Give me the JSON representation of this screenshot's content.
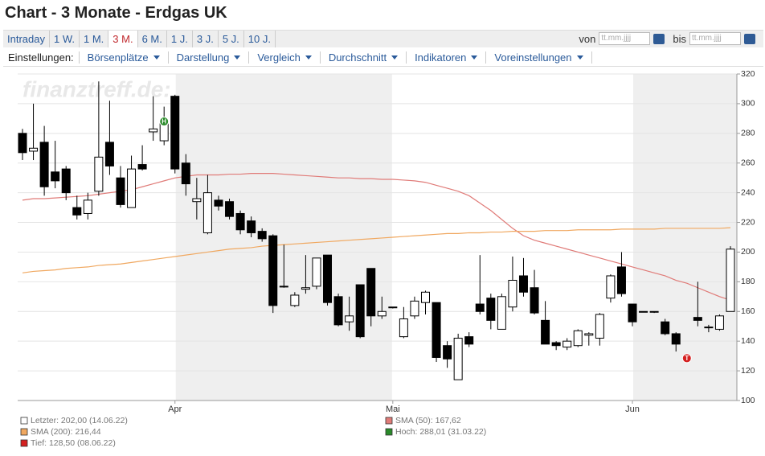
{
  "header": {
    "title": "Chart - 3 Monate - Erdgas UK"
  },
  "tabs": {
    "items": [
      "Intraday",
      "1 W.",
      "1 M.",
      "3 M.",
      "6 M.",
      "1 J.",
      "3 J.",
      "5 J.",
      "10 J."
    ],
    "active": 3
  },
  "date_range": {
    "from_label": "von",
    "to_label": "bis",
    "placeholder": "tt.mm.jjjj"
  },
  "settings": {
    "label": "Einstellungen:",
    "menus": [
      "Börsenplätze",
      "Darstellung",
      "Vergleich",
      "Durchschnitt",
      "Indikatoren",
      "Voreinstellungen"
    ]
  },
  "chart_data": {
    "type": "candlestick",
    "watermark": "finanztreff.de:",
    "categories": [
      null,
      null,
      null,
      null,
      null,
      null,
      null,
      null,
      null,
      null,
      null,
      null,
      null,
      null,
      "Apr",
      null,
      null,
      null,
      null,
      null,
      null,
      null,
      null,
      null,
      null,
      null,
      null,
      null,
      null,
      null,
      null,
      null,
      null,
      null,
      "Mai",
      null,
      null,
      null,
      null,
      null,
      null,
      null,
      null,
      null,
      null,
      null,
      null,
      null,
      null,
      null,
      null,
      null,
      null,
      null,
      null,
      null,
      "Jun",
      null,
      null,
      null,
      null,
      null,
      null,
      null,
      null,
      null
    ],
    "open": [
      280,
      268,
      274,
      254,
      256,
      230,
      226,
      241,
      274,
      250,
      230,
      259,
      281,
      275,
      305,
      260,
      234,
      213,
      235,
      234,
      226,
      221,
      214,
      211,
      177,
      164,
      175,
      177,
      198,
      170,
      153,
      178,
      189,
      157,
      163,
      143,
      157,
      166,
      166,
      137,
      114,
      143,
      165,
      169,
      148,
      163,
      184,
      176,
      154,
      139,
      136,
      137,
      144,
      142,
      169,
      190,
      165,
      160,
      160,
      153,
      145,
      null,
      156,
      149,
      148,
      160
    ],
    "high": [
      283,
      300,
      285,
      275,
      258,
      238,
      240,
      315,
      302,
      258,
      265,
      272,
      305,
      298,
      306,
      266,
      250,
      252,
      238,
      236,
      228,
      224,
      216,
      212,
      205,
      173,
      198,
      196,
      198,
      172,
      170,
      178,
      189,
      170,
      163,
      163,
      170,
      174,
      166,
      140,
      145,
      146,
      198,
      172,
      172,
      197,
      196,
      188,
      167,
      140,
      142,
      148,
      146,
      159,
      185,
      200,
      165,
      160,
      160,
      155,
      146,
      null,
      180,
      151,
      158,
      204
    ],
    "low": [
      262,
      262,
      238,
      243,
      235,
      222,
      222,
      238,
      252,
      230,
      230,
      255,
      275,
      272,
      253,
      238,
      222,
      212,
      228,
      222,
      212,
      210,
      207,
      159,
      176,
      163,
      172,
      175,
      164,
      150,
      147,
      142,
      150,
      155,
      162,
      142,
      155,
      158,
      126,
      122,
      114,
      136,
      158,
      148,
      148,
      160,
      170,
      158,
      138,
      134,
      134,
      136,
      137,
      137,
      166,
      170,
      150,
      160,
      159,
      144,
      133,
      null,
      150,
      146,
      147,
      160
    ],
    "close": [
      267,
      270,
      244,
      248,
      240,
      225,
      235,
      264,
      258,
      232,
      256,
      256,
      283,
      287,
      256,
      246,
      236,
      240,
      231,
      224,
      215,
      213,
      209,
      164,
      177,
      171,
      176,
      196,
      166,
      151,
      157,
      143,
      157,
      160,
      163,
      155,
      167,
      173,
      129,
      128,
      142,
      138,
      160,
      154,
      170,
      181,
      173,
      159,
      138,
      137,
      140,
      147,
      145,
      158,
      184,
      172,
      153,
      160,
      159.5,
      145,
      138,
      null,
      154,
      149.5,
      157,
      202
    ],
    "up_color": "#ffffff",
    "down_color": "#000000",
    "series": [
      {
        "name": "SMA (50)",
        "color": "#e07b78",
        "values": [
          235,
          236,
          236,
          236.5,
          237,
          237.5,
          238,
          239,
          240,
          241,
          242,
          244,
          246,
          248,
          250,
          251,
          252,
          252,
          252,
          252.5,
          252.5,
          253,
          253,
          253,
          252.5,
          252,
          251.5,
          251,
          250.5,
          250,
          250,
          249.5,
          249.5,
          249,
          249,
          248.5,
          248,
          247,
          245,
          243,
          241,
          238,
          233,
          228,
          222,
          216,
          211,
          208,
          206,
          204,
          202,
          200,
          198,
          196,
          194,
          192,
          190,
          188,
          186,
          184,
          181,
          179,
          176,
          173,
          170,
          167.62
        ]
      },
      {
        "name": "SMA (200)",
        "color": "#f0a860",
        "values": [
          186,
          187,
          187.5,
          188,
          189,
          189.5,
          190,
          191,
          191.5,
          192,
          193,
          194,
          195,
          196,
          197,
          198,
          199,
          200,
          201,
          202,
          202.5,
          203,
          204,
          204.5,
          205,
          205.5,
          206,
          206.5,
          207,
          207.5,
          208,
          208.5,
          209,
          209.5,
          210,
          210.5,
          211,
          211.5,
          212,
          212.5,
          212.5,
          213,
          213,
          213.5,
          213.5,
          214,
          214,
          214,
          214.5,
          214.5,
          214.5,
          215,
          215,
          215,
          215,
          215.5,
          215.5,
          215.5,
          215.5,
          216,
          216,
          216,
          216,
          216,
          216,
          216.44
        ]
      }
    ],
    "markers": [
      {
        "label": "H",
        "value": 288.01,
        "candle": 13,
        "color": "#2a8a2a"
      },
      {
        "label": "T",
        "value": 128.5,
        "candle": 61,
        "color": "#d42020"
      }
    ],
    "ylim": [
      100,
      320
    ],
    "yticks": [
      100,
      120,
      140,
      160,
      180,
      200,
      220,
      240,
      260,
      280,
      300,
      320
    ],
    "grid": true,
    "legend": [
      {
        "text": "Letzter: 202,00 (14.06.22)",
        "color": "#ffffff"
      },
      {
        "text": "SMA (50): 167,62",
        "color": "#e07b78"
      },
      {
        "text": "SMA (200): 216,44",
        "color": "#f0a860"
      },
      {
        "text": "Hoch: 288,01 (31.03.22)",
        "color": "#2a8a2a"
      },
      {
        "text": "Tief: 128,50 (08.06.22)",
        "color": "#d42020"
      }
    ]
  }
}
